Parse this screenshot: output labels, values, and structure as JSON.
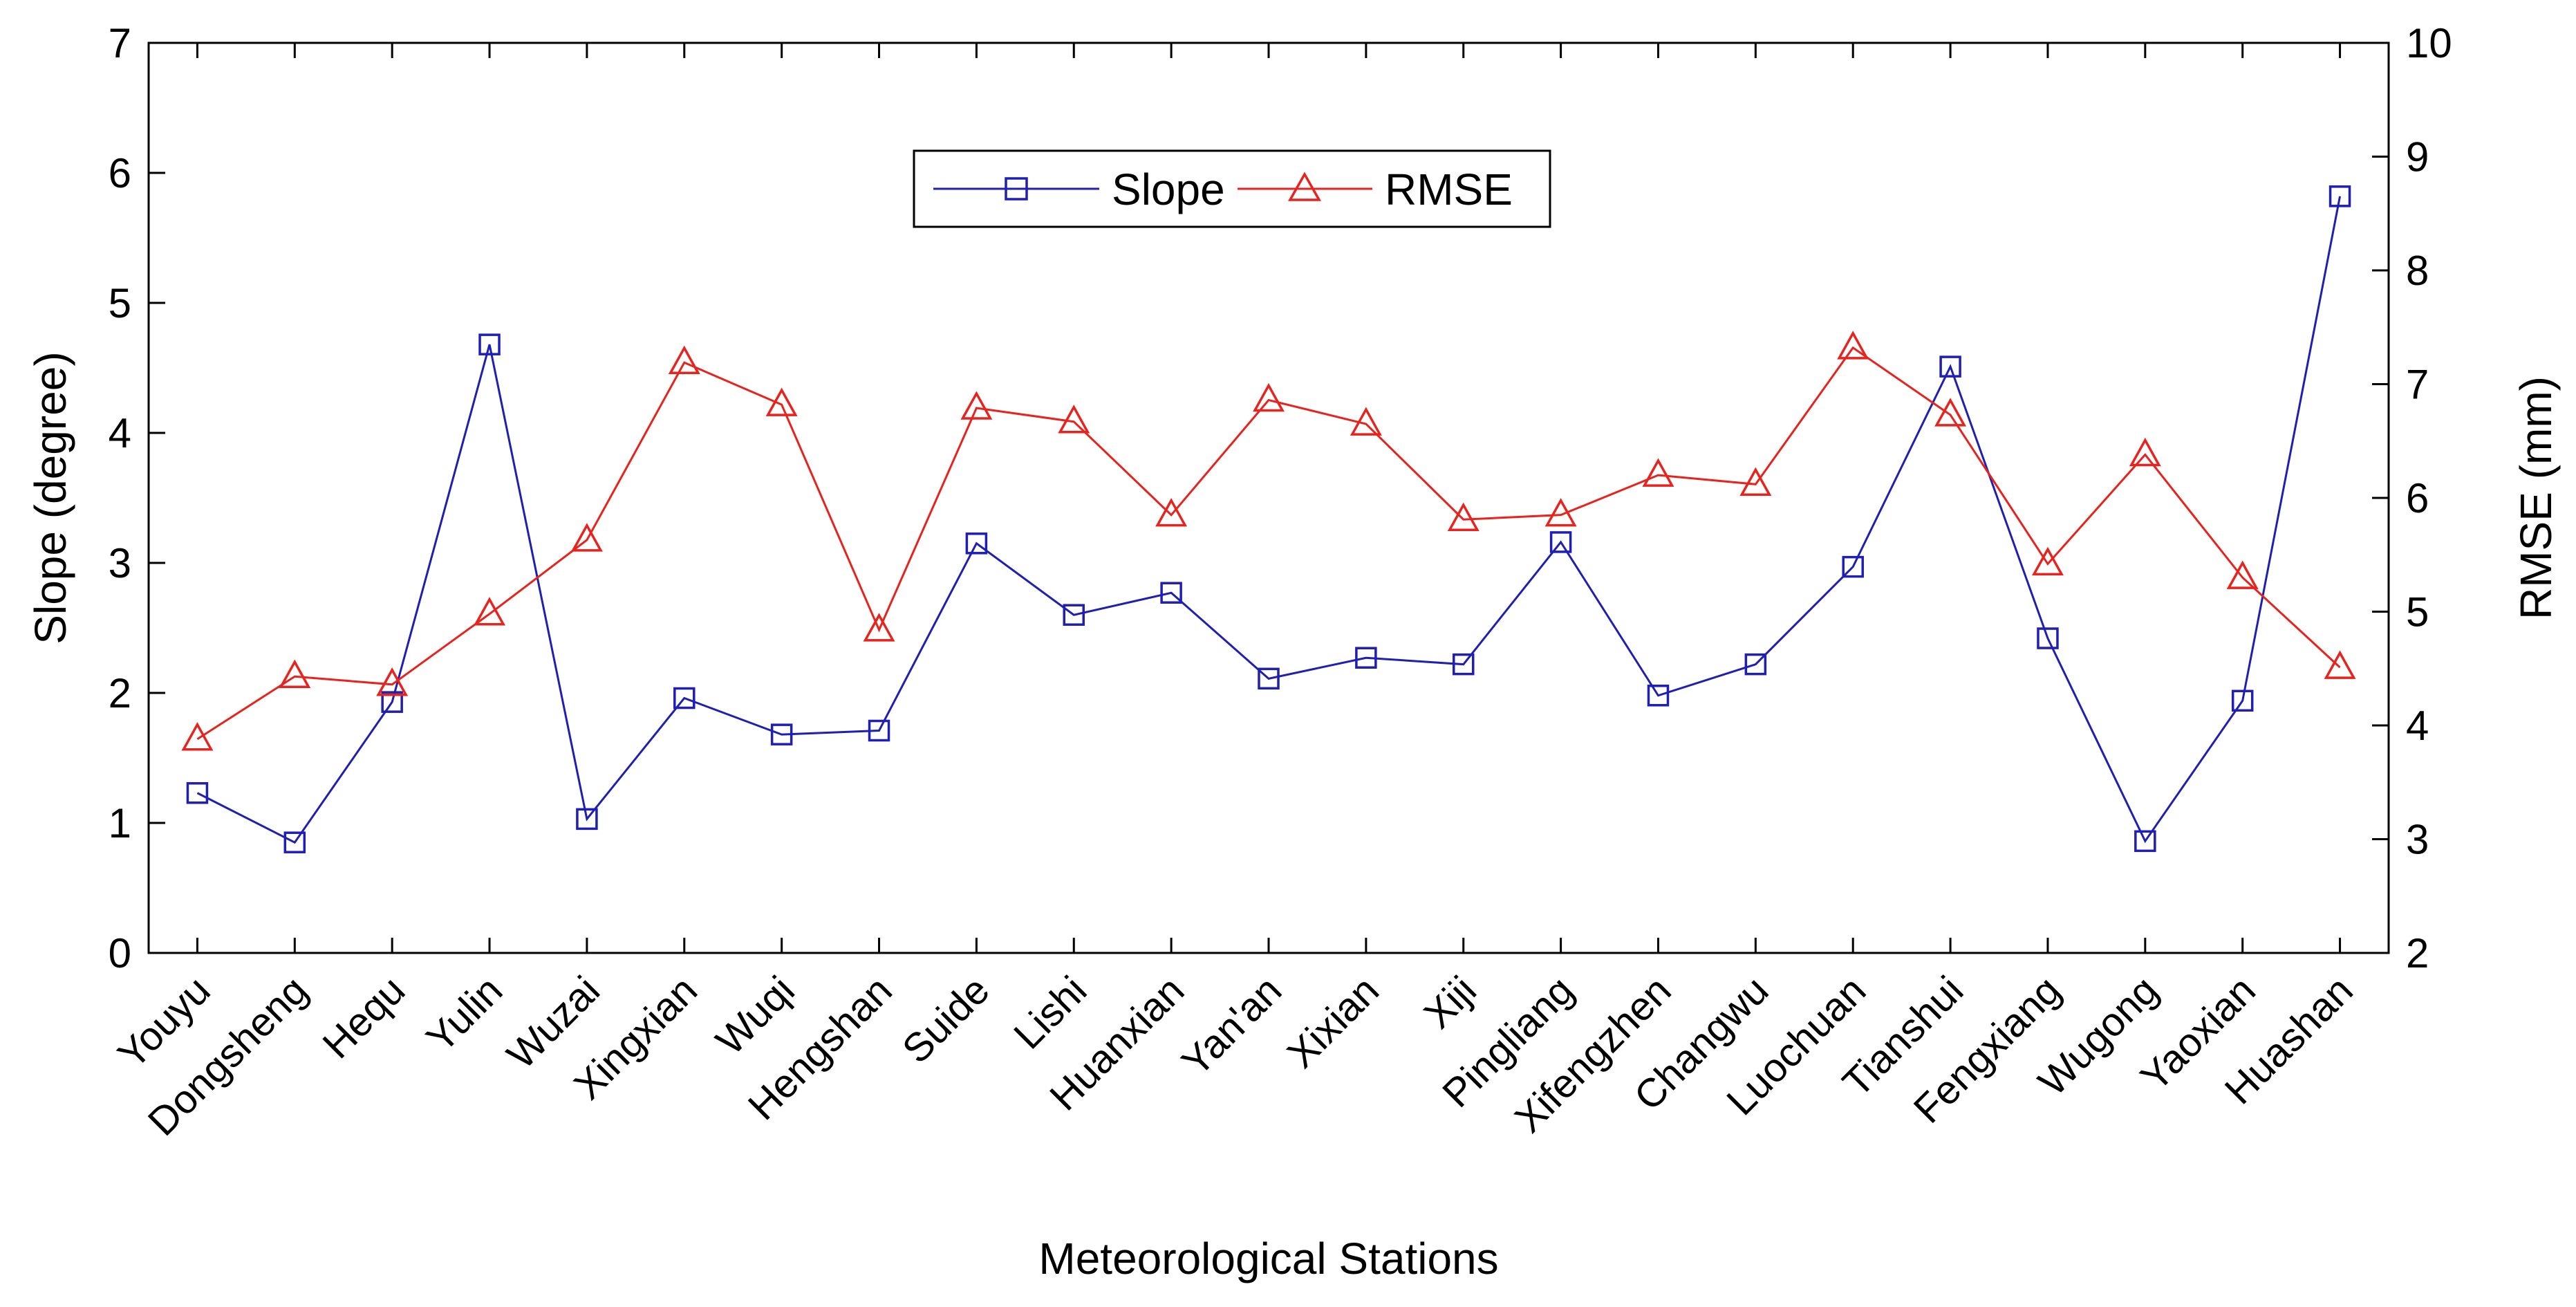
{
  "chart_data": {
    "type": "line",
    "title": "",
    "xlabel": "Meteorological Stations",
    "ylabel": "Slope (degree)",
    "y2label": "RMSE (mm)",
    "ylim": [
      0,
      7
    ],
    "y2lim": [
      2,
      10
    ],
    "yticks": [
      0,
      1,
      2,
      3,
      4,
      5,
      6,
      7
    ],
    "y2ticks": [
      2,
      3,
      4,
      5,
      6,
      7,
      8,
      9,
      10
    ],
    "grid": false,
    "legend_position": "top-center",
    "categories": [
      "Youyu",
      "Dongsheng",
      "Hequ",
      "Yulin",
      "Wuzai",
      "Xingxian",
      "Wuqi",
      "Hengshan",
      "Suide",
      "Lishi",
      "Huanxian",
      "Yan'an",
      "Xixian",
      "Xiji",
      "Pingliang",
      "Xifengzhen",
      "Changwu",
      "Luochuan",
      "Tianshui",
      "Fengxiang",
      "Wugong",
      "Yaoxian",
      "Huashan"
    ],
    "series": [
      {
        "name": "Slope",
        "axis": "left",
        "color": "#1f1fb4",
        "marker": "square",
        "values": [
          1.23,
          0.85,
          1.93,
          4.68,
          1.03,
          1.96,
          1.68,
          1.71,
          3.15,
          2.6,
          2.77,
          2.11,
          2.27,
          2.22,
          3.16,
          1.98,
          2.22,
          2.97,
          4.51,
          2.42,
          0.86,
          1.94,
          5.82
        ]
      },
      {
        "name": "RMSE",
        "axis": "right",
        "color": "#e8221c",
        "marker": "triangle",
        "values": [
          3.88,
          4.43,
          4.36,
          4.98,
          5.63,
          7.19,
          6.82,
          4.84,
          6.79,
          6.67,
          5.85,
          6.86,
          6.65,
          5.81,
          5.85,
          6.2,
          6.12,
          7.32,
          6.73,
          5.42,
          6.38,
          5.3,
          4.51
        ]
      }
    ]
  }
}
